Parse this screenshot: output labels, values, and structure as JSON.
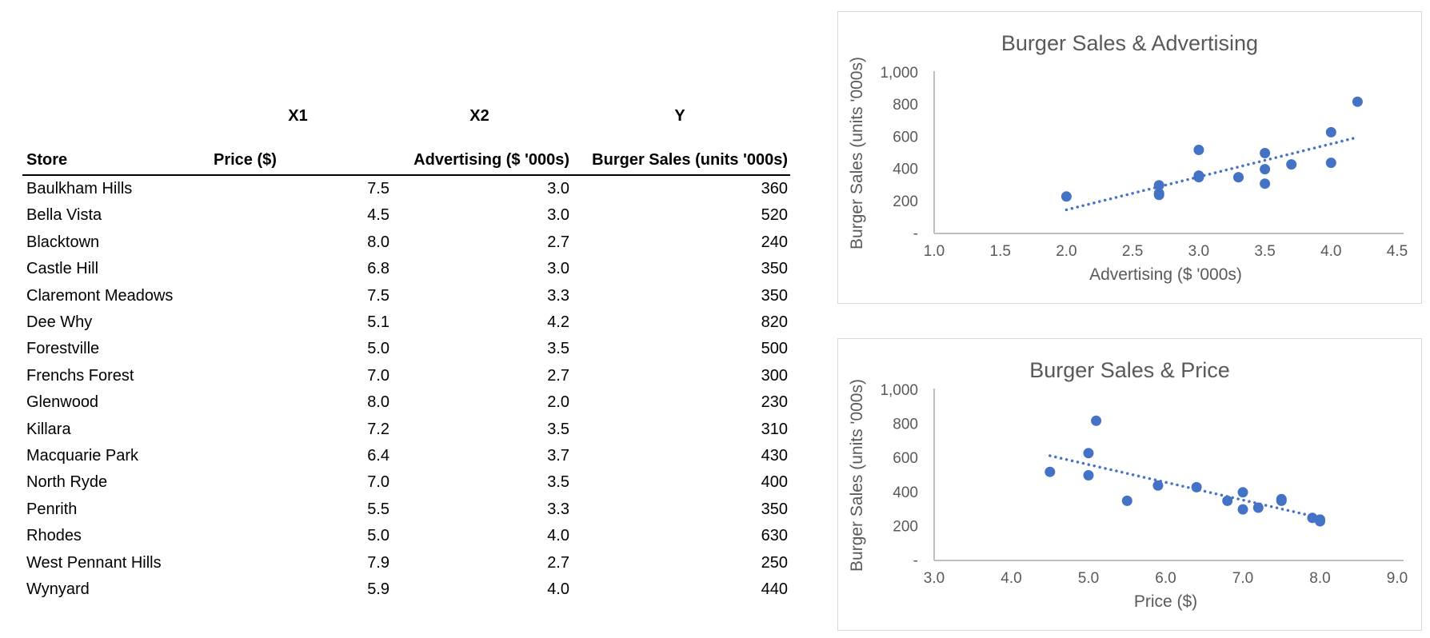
{
  "table": {
    "variable_labels": {
      "x1": "X1",
      "x2": "X2",
      "y": "Y"
    },
    "columns": [
      "Store",
      "Price ($)",
      "Advertising ($ '000s)",
      "Burger Sales (units '000s)"
    ],
    "rows": [
      [
        "Baulkham Hills",
        "7.5",
        "3.0",
        "360"
      ],
      [
        "Bella Vista",
        "4.5",
        "3.0",
        "520"
      ],
      [
        "Blacktown",
        "8.0",
        "2.7",
        "240"
      ],
      [
        "Castle Hill",
        "6.8",
        "3.0",
        "350"
      ],
      [
        "Claremont Meadows",
        "7.5",
        "3.3",
        "350"
      ],
      [
        "Dee Why",
        "5.1",
        "4.2",
        "820"
      ],
      [
        "Forestville",
        "5.0",
        "3.5",
        "500"
      ],
      [
        "Frenchs Forest",
        "7.0",
        "2.7",
        "300"
      ],
      [
        "Glenwood",
        "8.0",
        "2.0",
        "230"
      ],
      [
        "Killara",
        "7.2",
        "3.5",
        "310"
      ],
      [
        "Macquarie Park",
        "6.4",
        "3.7",
        "430"
      ],
      [
        "North Ryde",
        "7.0",
        "3.5",
        "400"
      ],
      [
        "Penrith",
        "5.5",
        "3.3",
        "350"
      ],
      [
        "Rhodes",
        "5.0",
        "4.0",
        "630"
      ],
      [
        "West Pennant Hills",
        "7.9",
        "2.7",
        "250"
      ],
      [
        "Wynyard",
        "5.9",
        "4.0",
        "440"
      ]
    ]
  },
  "chart_data": [
    {
      "type": "scatter",
      "title": "Burger Sales & Advertising",
      "xlabel": "Advertising ($ '000s)",
      "ylabel": "Burger Sales (units '000s)",
      "x": [
        3.0,
        3.0,
        2.7,
        3.0,
        3.3,
        4.2,
        3.5,
        2.7,
        2.0,
        3.5,
        3.7,
        3.5,
        3.3,
        4.0,
        2.7,
        4.0
      ],
      "y": [
        360,
        520,
        240,
        350,
        350,
        820,
        500,
        300,
        230,
        310,
        430,
        400,
        350,
        630,
        250,
        440
      ],
      "xlim": [
        1.0,
        4.5
      ],
      "ylim": [
        0,
        1000
      ],
      "xticks": [
        1.0,
        1.5,
        2.0,
        2.5,
        3.0,
        3.5,
        4.0,
        4.5
      ],
      "xtick_labels": [
        "1.0",
        "1.5",
        "2.0",
        "2.5",
        "3.0",
        "3.5",
        "4.0",
        "4.5"
      ],
      "yticks": [
        0,
        200,
        400,
        600,
        800,
        1000
      ],
      "ytick_labels": [
        "-",
        "200",
        "400",
        "600",
        "800",
        "1,000"
      ],
      "trendline": "linear",
      "grid": false,
      "legend": "none",
      "marker_color": "#4472C4",
      "trendline_color": "#4472C4"
    },
    {
      "type": "scatter",
      "title": "Burger Sales & Price",
      "xlabel": "Price ($)",
      "ylabel": "Burger Sales (units '000s)",
      "x": [
        7.5,
        4.5,
        8.0,
        6.8,
        7.5,
        5.1,
        5.0,
        7.0,
        8.0,
        7.2,
        6.4,
        7.0,
        5.5,
        5.0,
        7.9,
        5.9
      ],
      "y": [
        360,
        520,
        240,
        350,
        350,
        820,
        500,
        300,
        230,
        310,
        430,
        400,
        350,
        630,
        250,
        440
      ],
      "xlim": [
        3.0,
        9.0
      ],
      "ylim": [
        0,
        1000
      ],
      "xticks": [
        3.0,
        4.0,
        5.0,
        6.0,
        7.0,
        8.0,
        9.0
      ],
      "xtick_labels": [
        "3.0",
        "4.0",
        "5.0",
        "6.0",
        "7.0",
        "8.0",
        "9.0"
      ],
      "yticks": [
        0,
        200,
        400,
        600,
        800,
        1000
      ],
      "ytick_labels": [
        "-",
        "200",
        "400",
        "600",
        "800",
        "1,000"
      ],
      "trendline": "linear",
      "grid": false,
      "legend": "none",
      "marker_color": "#4472C4",
      "trendline_color": "#4472C4"
    }
  ],
  "colors": {
    "axis_line": "#BFBFBF",
    "chart_text": "#595959",
    "chart_border": "#D9D9D9",
    "marker": "#4472C4"
  }
}
